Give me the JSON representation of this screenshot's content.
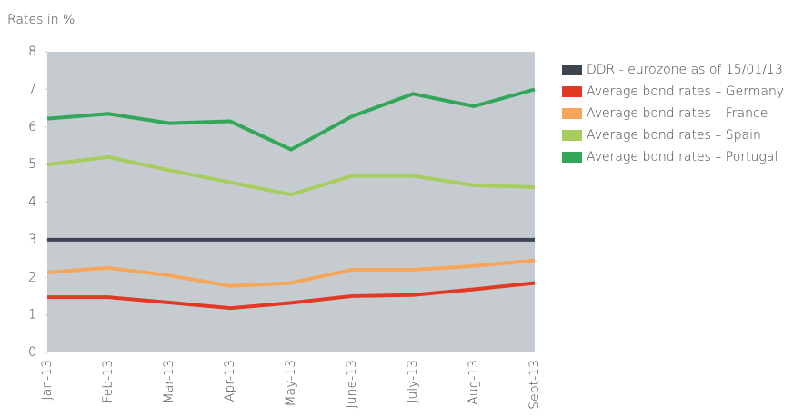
{
  "chart_data": {
    "type": "line",
    "y_axis_label": "Rates in %",
    "categories": [
      "Jan-13",
      "Feb-13",
      "Mar-13",
      "Apr-13",
      "May-13",
      "June-13",
      "July-13",
      "Aug-13",
      "Sept-13"
    ],
    "series": [
      {
        "name": "DDR - eurozone as of 15/01/13",
        "color": "#3d4350",
        "values": [
          3,
          3,
          3,
          3,
          3,
          3,
          3,
          3,
          3
        ]
      },
      {
        "name": "Average bond rates – Germany",
        "color": "#e03a24",
        "values": [
          1.47,
          1.47,
          1.33,
          1.18,
          1.32,
          1.5,
          1.53,
          1.68,
          1.85
        ]
      },
      {
        "name": "Average bond rates – France",
        "color": "#f5a65b",
        "values": [
          2.13,
          2.25,
          2.05,
          1.77,
          1.85,
          2.2,
          2.2,
          2.3,
          2.45
        ]
      },
      {
        "name": "Average bond rates – Spain",
        "color": "#a6cd5d",
        "values": [
          5.0,
          5.2,
          4.85,
          4.53,
          4.2,
          4.7,
          4.7,
          4.45,
          4.4
        ]
      },
      {
        "name": "Average bond rates – Portugal",
        "color": "#33a65a",
        "values": [
          6.22,
          6.35,
          6.1,
          6.15,
          5.4,
          6.28,
          6.88,
          6.55,
          7.0
        ]
      }
    ],
    "ylim": [
      0,
      8
    ],
    "yticks": [
      0,
      1,
      2,
      3,
      4,
      5,
      6,
      7,
      8
    ],
    "grid": false,
    "legend": "right"
  }
}
